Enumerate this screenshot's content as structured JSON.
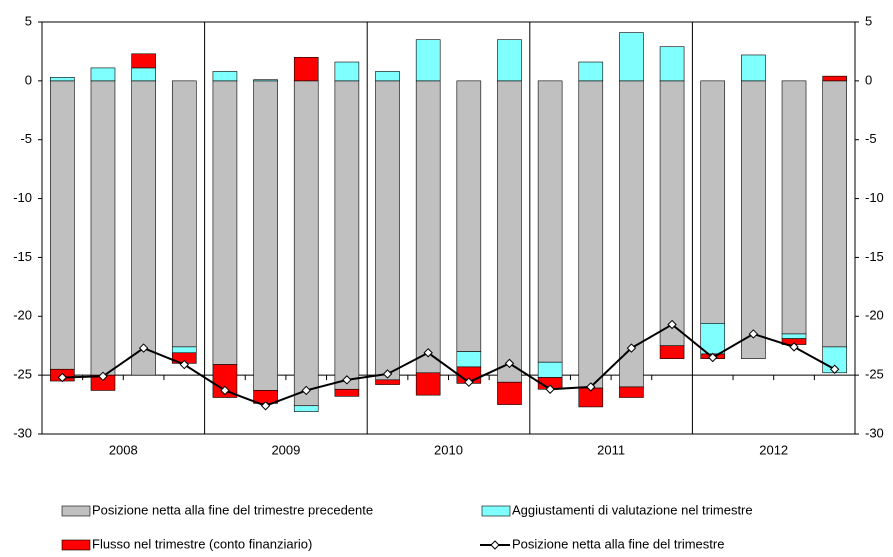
{
  "chart_data": {
    "type": "stacked_bar_line",
    "categories": [
      null,
      null,
      null,
      null,
      null,
      null,
      null,
      null,
      null,
      null,
      null,
      null,
      null,
      null,
      null,
      null,
      null,
      null,
      null,
      null
    ],
    "group_labels": [
      "2008",
      "2009",
      "2010",
      "2011",
      "2012"
    ],
    "series": [
      {
        "name": "Posizione netta alla fine del trimestre precedente",
        "color": "#c0c0c0",
        "kind": "bar",
        "values": [
          -24.5,
          -25.0,
          -25.0,
          -22.6,
          -24.1,
          -26.3,
          -27.6,
          -26.2,
          -25.4,
          -24.8,
          -23.0,
          -25.6,
          -23.9,
          -26.1,
          -26.0,
          -22.5,
          -20.6,
          -23.6,
          -21.5,
          -22.6
        ]
      },
      {
        "name": "Aggiustamenti di valutazione nel trimestre",
        "color": "#80ffff",
        "kind": "bar",
        "values": [
          0.3,
          1.1,
          1.1,
          -0.5,
          0.8,
          0.1,
          -0.5,
          1.6,
          0.8,
          3.5,
          -1.3,
          3.5,
          -1.3,
          1.6,
          4.1,
          2.9,
          -2.6,
          2.2,
          -0.4,
          -2.2
        ]
      },
      {
        "name": "Flusso nel trimestre (conto finanziario)",
        "color": "#ff0000",
        "kind": "bar",
        "values": [
          -1.0,
          -1.3,
          1.2,
          -0.9,
          -2.8,
          -1.1,
          2.0,
          -0.6,
          -0.4,
          -1.9,
          -1.4,
          -1.9,
          -1.0,
          -1.6,
          -0.9,
          -1.1,
          -0.4,
          0,
          -0.5,
          0.4
        ]
      },
      {
        "name": "Posizione netta alla fine del trimestre",
        "color": "#000000",
        "kind": "line",
        "values": [
          -25.2,
          -25.1,
          -22.7,
          -24.1,
          -26.3,
          -27.6,
          -26.3,
          -25.4,
          -24.9,
          -23.1,
          -25.6,
          -24.0,
          -26.2,
          -26.0,
          -22.7,
          -20.7,
          -23.5,
          -21.5,
          -22.6,
          -24.5
        ]
      }
    ],
    "ylim": [
      -30,
      5
    ],
    "yticks": [
      -30,
      -25,
      -20,
      -15,
      -10,
      -5,
      0,
      5
    ],
    "y2lim": [
      -30,
      5
    ],
    "y2ticks": [
      -30,
      -25,
      -20,
      -15,
      -10,
      -5,
      0,
      5
    ]
  }
}
